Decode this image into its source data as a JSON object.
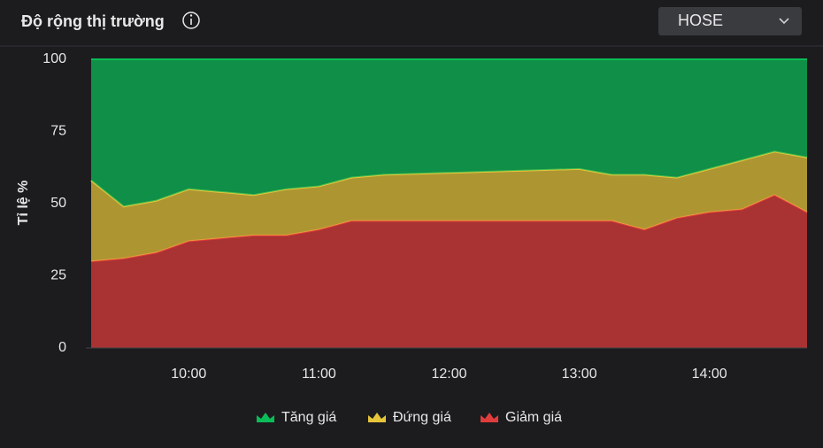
{
  "header": {
    "title": "Độ rộng thị trường",
    "exchange": "HOSE"
  },
  "chart_data": {
    "type": "stacked-area",
    "y_label": "Tỉ lệ %",
    "x": [
      "09:15",
      "09:30",
      "09:45",
      "10:00",
      "10:15",
      "10:30",
      "10:45",
      "11:00",
      "11:15",
      "11:30",
      "13:00",
      "13:15",
      "13:30",
      "13:45",
      "14:00",
      "14:15",
      "14:30",
      "14:45"
    ],
    "xlim": [
      "09:15",
      "14:45"
    ],
    "xticks": [
      "10:00",
      "11:00",
      "12:00",
      "13:00",
      "14:00"
    ],
    "ylim": [
      0,
      100
    ],
    "yticks": [
      0,
      25,
      50,
      75,
      100
    ],
    "series": [
      {
        "name": "Tăng giá",
        "color": "#0bbd57",
        "values": [
          42,
          51,
          49,
          45,
          46,
          47,
          45,
          44,
          41,
          40,
          38,
          40,
          40,
          41,
          38,
          35,
          32,
          34
        ]
      },
      {
        "name": "Đứng giá",
        "color": "#e6c53a",
        "values": [
          28,
          18,
          18,
          18,
          16,
          14,
          16,
          15,
          15,
          16,
          18,
          16,
          19,
          14,
          15,
          17,
          15,
          19
        ]
      },
      {
        "name": "Giảm giá",
        "color": "#e03c3c",
        "values": [
          30,
          31,
          33,
          37,
          38,
          39,
          39,
          41,
          44,
          44,
          44,
          44,
          41,
          45,
          47,
          48,
          53,
          47
        ]
      }
    ]
  }
}
